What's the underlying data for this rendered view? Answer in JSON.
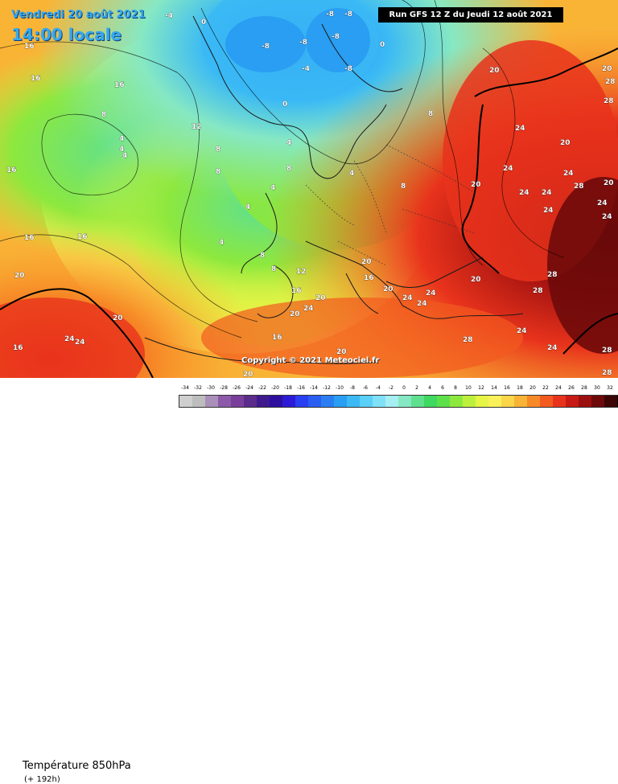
{
  "header": {
    "date": "Vendredi 20 août 2021",
    "time": "14:00 locale",
    "run": "Run GFS 12 Z du Jeudi 12 août 2021"
  },
  "copyright": "Copyright © 2021 Meteociel.fr",
  "footer": {
    "parameter": "Température 850hPa",
    "lead_time": "(+ 192h)"
  },
  "legend": {
    "steps": [
      {
        "label": "-34",
        "color": "#cfcfcf"
      },
      {
        "label": "-32",
        "color": "#bdbdbd"
      },
      {
        "label": "-30",
        "color": "#a98fb9"
      },
      {
        "label": "-28",
        "color": "#8c5aa8"
      },
      {
        "label": "-26",
        "color": "#7a3f9a"
      },
      {
        "label": "-24",
        "color": "#5c2c8c"
      },
      {
        "label": "-22",
        "color": "#3e1a8c"
      },
      {
        "label": "-20",
        "color": "#2d0f9e"
      },
      {
        "label": "-18",
        "color": "#2d1ad6"
      },
      {
        "label": "-16",
        "color": "#2a3ef2"
      },
      {
        "label": "-14",
        "color": "#2a5ef2"
      },
      {
        "label": "-12",
        "color": "#2a7ef2"
      },
      {
        "label": "-10",
        "color": "#2a9ef2"
      },
      {
        "label": "-8",
        "color": "#3ab9f5"
      },
      {
        "label": "-6",
        "color": "#5acff7"
      },
      {
        "label": "-4",
        "color": "#7fe1f7"
      },
      {
        "label": "-2",
        "color": "#a5eef2"
      },
      {
        "label": "0",
        "color": "#86e8c3"
      },
      {
        "label": "2",
        "color": "#5fe08f"
      },
      {
        "label": "4",
        "color": "#3fd860"
      },
      {
        "label": "6",
        "color": "#5ee04a"
      },
      {
        "label": "8",
        "color": "#8de83e"
      },
      {
        "label": "10",
        "color": "#bdf03e"
      },
      {
        "label": "12",
        "color": "#e6f545"
      },
      {
        "label": "14",
        "color": "#faf05a"
      },
      {
        "label": "16",
        "color": "#fbd54a"
      },
      {
        "label": "18",
        "color": "#f9b436"
      },
      {
        "label": "20",
        "color": "#f78a27"
      },
      {
        "label": "22",
        "color": "#f25a1f"
      },
      {
        "label": "24",
        "color": "#e8331c"
      },
      {
        "label": "26",
        "color": "#c81a14"
      },
      {
        "label": "28",
        "color": "#9c0f0f"
      },
      {
        "label": "30",
        "color": "#6e0a0a"
      },
      {
        "label": "32",
        "color": "#3d0606"
      },
      {
        "label": "34",
        "color": "#000000"
      }
    ]
  },
  "map_labels": [
    {
      "text": "-4"
    },
    {
      "text": "0"
    },
    {
      "text": "-8"
    },
    {
      "text": "-8"
    },
    {
      "text": "-8"
    },
    {
      "text": "-8"
    },
    {
      "text": "-8"
    },
    {
      "text": "-8"
    },
    {
      "text": "-4"
    },
    {
      "text": "0"
    },
    {
      "text": "0"
    },
    {
      "text": "16"
    },
    {
      "text": "16"
    },
    {
      "text": "16"
    },
    {
      "text": "16"
    },
    {
      "text": "16"
    },
    {
      "text": "8"
    },
    {
      "text": "4"
    },
    {
      "text": "4"
    },
    {
      "text": "4"
    },
    {
      "text": "12"
    },
    {
      "text": "8"
    },
    {
      "text": "8"
    },
    {
      "text": "4"
    },
    {
      "text": "4"
    },
    {
      "text": "4"
    },
    {
      "text": "8"
    },
    {
      "text": "8"
    },
    {
      "text": "8"
    },
    {
      "text": "4"
    },
    {
      "text": "4"
    },
    {
      "text": "8"
    },
    {
      "text": "8"
    },
    {
      "text": "12"
    },
    {
      "text": "20"
    },
    {
      "text": "16"
    },
    {
      "text": "16"
    },
    {
      "text": "20"
    },
    {
      "text": "20"
    },
    {
      "text": "24"
    },
    {
      "text": "24"
    },
    {
      "text": "20"
    },
    {
      "text": "24"
    },
    {
      "text": "24"
    },
    {
      "text": "20"
    },
    {
      "text": "20"
    },
    {
      "text": "24"
    },
    {
      "text": "24"
    },
    {
      "text": "20"
    },
    {
      "text": "24"
    },
    {
      "text": "24"
    },
    {
      "text": "20"
    },
    {
      "text": "24"
    },
    {
      "text": "24"
    },
    {
      "text": "20"
    },
    {
      "text": "28"
    },
    {
      "text": "28"
    },
    {
      "text": "28"
    },
    {
      "text": "24"
    },
    {
      "text": "28"
    },
    {
      "text": "28"
    },
    {
      "text": "24"
    },
    {
      "text": "20"
    },
    {
      "text": "16"
    },
    {
      "text": "16"
    },
    {
      "text": "20"
    },
    {
      "text": "20"
    },
    {
      "text": "24"
    },
    {
      "text": "24"
    },
    {
      "text": "20"
    },
    {
      "text": "28"
    },
    {
      "text": "16"
    },
    {
      "text": "20"
    },
    {
      "text": "24"
    },
    {
      "text": "24"
    },
    {
      "text": "28"
    },
    {
      "text": "28"
    }
  ]
}
